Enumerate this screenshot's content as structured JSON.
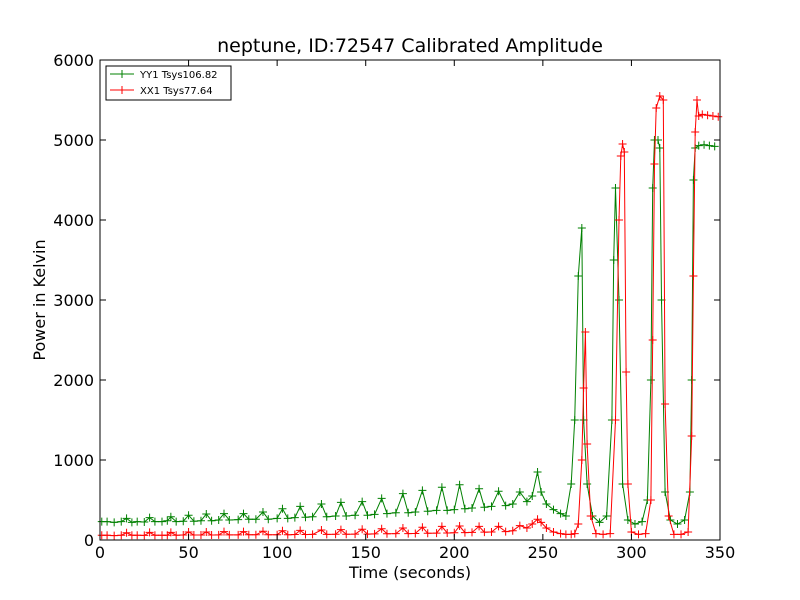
{
  "chart_data": {
    "type": "line",
    "title": "neptune, ID:72547 Calibrated Amplitude",
    "xlabel": "Time (seconds)",
    "ylabel": "Power in Kelvin",
    "xlim": [
      0,
      350
    ],
    "ylim": [
      0,
      6000
    ],
    "xticks": [
      0,
      50,
      100,
      150,
      200,
      250,
      300,
      350
    ],
    "yticks": [
      0,
      1000,
      2000,
      3000,
      4000,
      5000,
      6000
    ],
    "grid": false,
    "legend_position": "top-left",
    "series": [
      {
        "name": "YY1 Tsys106.82",
        "color": "#008000",
        "marker": "+",
        "points": [
          [
            1,
            230
          ],
          [
            4,
            230
          ],
          [
            8,
            220
          ],
          [
            12,
            230
          ],
          [
            15,
            270
          ],
          [
            18,
            220
          ],
          [
            21,
            230
          ],
          [
            25,
            225
          ],
          [
            28,
            280
          ],
          [
            31,
            230
          ],
          [
            35,
            230
          ],
          [
            38,
            240
          ],
          [
            40,
            290
          ],
          [
            43,
            230
          ],
          [
            47,
            235
          ],
          [
            50,
            310
          ],
          [
            53,
            235
          ],
          [
            57,
            240
          ],
          [
            60,
            325
          ],
          [
            63,
            240
          ],
          [
            67,
            250
          ],
          [
            70,
            330
          ],
          [
            73,
            250
          ],
          [
            78,
            255
          ],
          [
            81,
            330
          ],
          [
            84,
            260
          ],
          [
            88,
            260
          ],
          [
            92,
            350
          ],
          [
            95,
            260
          ],
          [
            100,
            270
          ],
          [
            103,
            390
          ],
          [
            106,
            270
          ],
          [
            110,
            280
          ],
          [
            113,
            420
          ],
          [
            116,
            285
          ],
          [
            120,
            290
          ],
          [
            125,
            450
          ],
          [
            128,
            290
          ],
          [
            133,
            300
          ],
          [
            136,
            470
          ],
          [
            139,
            300
          ],
          [
            144,
            310
          ],
          [
            148,
            480
          ],
          [
            151,
            310
          ],
          [
            155,
            320
          ],
          [
            159,
            520
          ],
          [
            162,
            330
          ],
          [
            167,
            340
          ],
          [
            171,
            580
          ],
          [
            174,
            340
          ],
          [
            178,
            350
          ],
          [
            182,
            620
          ],
          [
            185,
            360
          ],
          [
            190,
            370
          ],
          [
            193,
            660
          ],
          [
            196,
            370
          ],
          [
            200,
            380
          ],
          [
            203,
            690
          ],
          [
            206,
            390
          ],
          [
            210,
            400
          ],
          [
            214,
            640
          ],
          [
            217,
            410
          ],
          [
            221,
            420
          ],
          [
            225,
            610
          ],
          [
            229,
            430
          ],
          [
            233,
            450
          ],
          [
            237,
            600
          ],
          [
            241,
            480
          ],
          [
            244,
            550
          ],
          [
            247,
            850
          ],
          [
            249,
            600
          ],
          [
            252,
            450
          ],
          [
            256,
            380
          ],
          [
            260,
            330
          ],
          [
            263,
            300
          ],
          [
            266,
            700
          ],
          [
            268,
            1500
          ],
          [
            270,
            3300
          ],
          [
            272,
            3900
          ],
          [
            273,
            1500
          ],
          [
            275,
            700
          ],
          [
            278,
            300
          ],
          [
            282,
            220
          ],
          [
            286,
            300
          ],
          [
            289,
            1500
          ],
          [
            290,
            3500
          ],
          [
            291,
            4400
          ],
          [
            293,
            3000
          ],
          [
            295,
            700
          ],
          [
            298,
            250
          ],
          [
            302,
            200
          ],
          [
            306,
            230
          ],
          [
            309,
            500
          ],
          [
            311,
            2000
          ],
          [
            312,
            4400
          ],
          [
            313,
            5000
          ],
          [
            315,
            5000
          ],
          [
            316,
            4900
          ],
          [
            317,
            3000
          ],
          [
            319,
            600
          ],
          [
            322,
            250
          ],
          [
            326,
            200
          ],
          [
            330,
            250
          ],
          [
            333,
            600
          ],
          [
            334,
            2000
          ],
          [
            335,
            4500
          ],
          [
            336,
            4900
          ],
          [
            338,
            4930
          ],
          [
            341,
            4940
          ],
          [
            344,
            4930
          ],
          [
            347,
            4920
          ]
        ]
      },
      {
        "name": "XX1 Tsys77.64",
        "color": "#ff0000",
        "marker": "+",
        "points": [
          [
            1,
            60
          ],
          [
            4,
            60
          ],
          [
            8,
            55
          ],
          [
            12,
            60
          ],
          [
            15,
            90
          ],
          [
            18,
            60
          ],
          [
            21,
            60
          ],
          [
            25,
            58
          ],
          [
            28,
            95
          ],
          [
            31,
            60
          ],
          [
            35,
            60
          ],
          [
            38,
            60
          ],
          [
            40,
            95
          ],
          [
            43,
            60
          ],
          [
            47,
            62
          ],
          [
            50,
            100
          ],
          [
            53,
            62
          ],
          [
            57,
            62
          ],
          [
            60,
            100
          ],
          [
            63,
            62
          ],
          [
            67,
            64
          ],
          [
            70,
            105
          ],
          [
            73,
            64
          ],
          [
            78,
            64
          ],
          [
            81,
            105
          ],
          [
            84,
            65
          ],
          [
            88,
            65
          ],
          [
            92,
            110
          ],
          [
            95,
            65
          ],
          [
            100,
            66
          ],
          [
            103,
            115
          ],
          [
            106,
            66
          ],
          [
            110,
            68
          ],
          [
            113,
            120
          ],
          [
            116,
            68
          ],
          [
            120,
            70
          ],
          [
            125,
            125
          ],
          [
            128,
            70
          ],
          [
            133,
            72
          ],
          [
            136,
            130
          ],
          [
            139,
            72
          ],
          [
            144,
            74
          ],
          [
            148,
            135
          ],
          [
            151,
            74
          ],
          [
            155,
            76
          ],
          [
            159,
            140
          ],
          [
            162,
            78
          ],
          [
            167,
            80
          ],
          [
            171,
            150
          ],
          [
            174,
            80
          ],
          [
            178,
            82
          ],
          [
            182,
            160
          ],
          [
            185,
            84
          ],
          [
            190,
            86
          ],
          [
            193,
            170
          ],
          [
            196,
            88
          ],
          [
            200,
            90
          ],
          [
            203,
            175
          ],
          [
            206,
            92
          ],
          [
            210,
            95
          ],
          [
            214,
            170
          ],
          [
            217,
            98
          ],
          [
            221,
            100
          ],
          [
            225,
            170
          ],
          [
            229,
            105
          ],
          [
            233,
            115
          ],
          [
            237,
            180
          ],
          [
            241,
            150
          ],
          [
            244,
            200
          ],
          [
            247,
            260
          ],
          [
            249,
            220
          ],
          [
            252,
            150
          ],
          [
            256,
            100
          ],
          [
            260,
            80
          ],
          [
            263,
            70
          ],
          [
            266,
            70
          ],
          [
            268,
            80
          ],
          [
            270,
            200
          ],
          [
            272,
            1000
          ],
          [
            273,
            1900
          ],
          [
            274,
            2600
          ],
          [
            275,
            1200
          ],
          [
            277,
            300
          ],
          [
            280,
            80
          ],
          [
            284,
            70
          ],
          [
            288,
            80
          ],
          [
            291,
            1500
          ],
          [
            293,
            4000
          ],
          [
            294,
            4800
          ],
          [
            295,
            4950
          ],
          [
            296,
            4850
          ],
          [
            297,
            2100
          ],
          [
            298,
            700
          ],
          [
            300,
            100
          ],
          [
            304,
            70
          ],
          [
            308,
            80
          ],
          [
            311,
            500
          ],
          [
            312,
            2500
          ],
          [
            313,
            4700
          ],
          [
            314,
            5400
          ],
          [
            316,
            5550
          ],
          [
            318,
            5500
          ],
          [
            319,
            1700
          ],
          [
            321,
            300
          ],
          [
            324,
            70
          ],
          [
            328,
            70
          ],
          [
            332,
            100
          ],
          [
            334,
            1300
          ],
          [
            335,
            3300
          ],
          [
            336,
            5100
          ],
          [
            337,
            5500
          ],
          [
            338,
            5300
          ],
          [
            340,
            5320
          ],
          [
            343,
            5310
          ],
          [
            346,
            5300
          ],
          [
            349,
            5290
          ]
        ]
      }
    ]
  }
}
